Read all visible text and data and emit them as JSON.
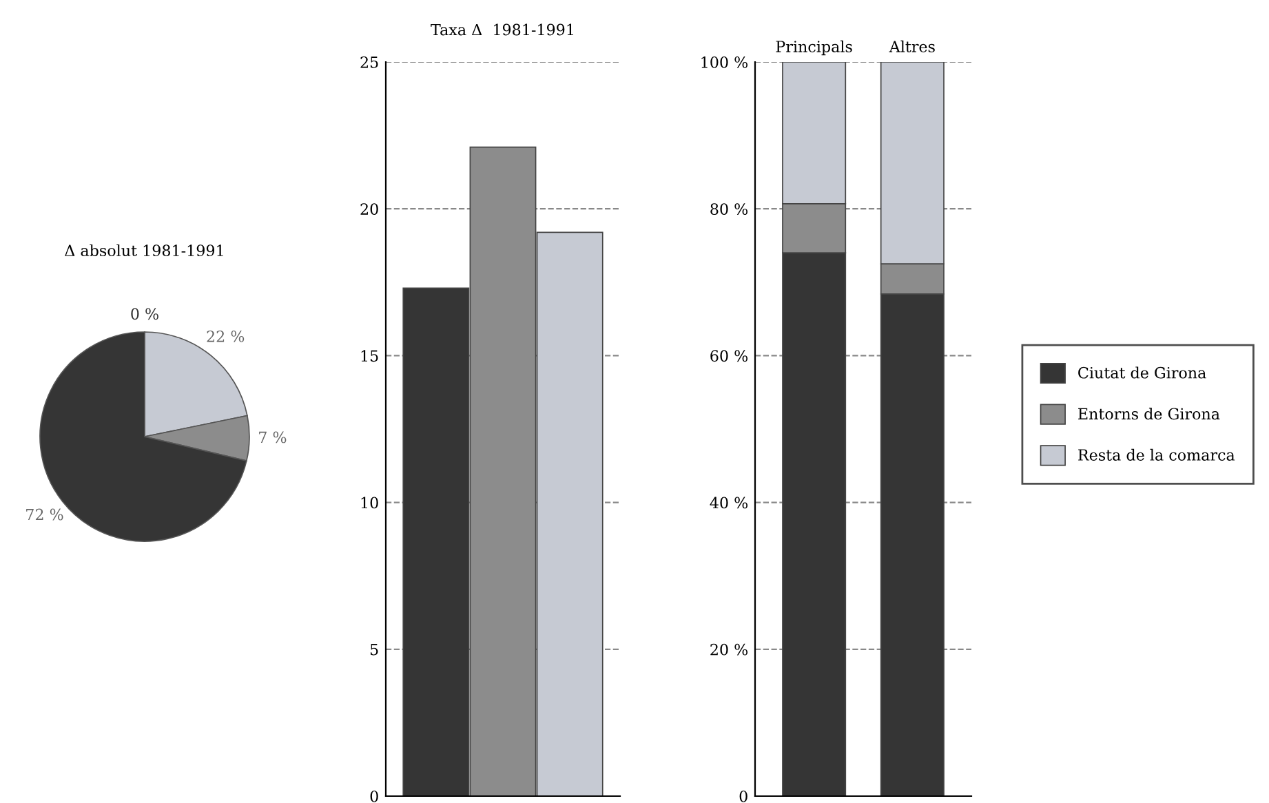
{
  "chart_data": [
    {
      "type": "pie",
      "title": "Δ absolut 1981-1991",
      "categories": [
        null,
        null,
        null
      ],
      "values": [
        22,
        7,
        72
      ],
      "colors": [
        "#c6cad3",
        "#8c8c8c",
        "#353535"
      ],
      "value_labels": [
        "22 %",
        "7 %",
        "72 %"
      ],
      "annotations": [
        "0 %"
      ]
    },
    {
      "type": "bar",
      "title": "Taxa Δ  1981-1991",
      "categories": [
        null,
        null,
        null
      ],
      "values": [
        17.3,
        22.1,
        19.2
      ],
      "colors": [
        "#353535",
        "#8c8c8c",
        "#c6cad3"
      ],
      "ylim": [
        0,
        25
      ],
      "yticks": [
        0,
        5,
        10,
        15,
        20,
        25
      ],
      "grid": "y"
    },
    {
      "type": "bar",
      "stacked": true,
      "categories": [
        "Principals",
        "Altres"
      ],
      "ylim": [
        0,
        100
      ],
      "yticks": [
        {
          "value": 0,
          "label": "0"
        },
        {
          "value": 20,
          "label": "20 %"
        },
        {
          "value": 40,
          "label": "40 %"
        },
        {
          "value": 60,
          "label": "60 %"
        },
        {
          "value": 80,
          "label": "80 %"
        },
        {
          "value": 100,
          "label": "100 %"
        }
      ],
      "grid": "y",
      "legend": "right",
      "series": [
        {
          "name": "Ciutat de Girona",
          "color": "#353535",
          "values": [
            74.0,
            68.4
          ]
        },
        {
          "name": "Entorns de Girona",
          "color": "#8c8c8c",
          "values": [
            6.7,
            4.1
          ]
        },
        {
          "name": "Resta de la comarca",
          "color": "#c6cad3",
          "values": [
            19.3,
            27.5
          ]
        }
      ]
    }
  ]
}
